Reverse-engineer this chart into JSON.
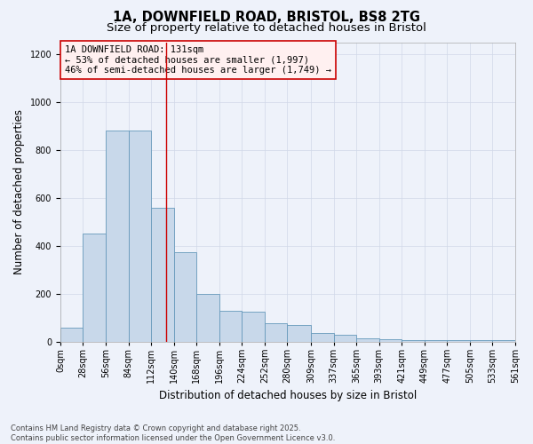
{
  "title_line1": "1A, DOWNFIELD ROAD, BRISTOL, BS8 2TG",
  "title_line2": "Size of property relative to detached houses in Bristol",
  "xlabel": "Distribution of detached houses by size in Bristol",
  "ylabel": "Number of detached properties",
  "annotation_line1": "1A DOWNFIELD ROAD: 131sqm",
  "annotation_line2": "← 53% of detached houses are smaller (1,997)",
  "annotation_line3": "46% of semi-detached houses are larger (1,749) →",
  "bin_edges": [
    0,
    28,
    56,
    84,
    112,
    140,
    168,
    196,
    224,
    252,
    280,
    309,
    337,
    365,
    393,
    421,
    449,
    477,
    505,
    533,
    561
  ],
  "bar_heights": [
    60,
    450,
    880,
    880,
    560,
    375,
    200,
    130,
    125,
    75,
    70,
    35,
    30,
    15,
    10,
    5,
    5,
    5,
    5,
    5
  ],
  "bar_color": "#c8d8ea",
  "bar_edge_color": "#6699bb",
  "vline_color": "#cc0000",
  "vline_x": 131,
  "grid_color": "#d0d8e8",
  "background_color": "#eef2fa",
  "annotation_bg_color": "#fff0f0",
  "annotation_edge_color": "#cc0000",
  "ylim": [
    0,
    1250
  ],
  "yticks": [
    0,
    200,
    400,
    600,
    800,
    1000,
    1200
  ],
  "footnote": "Contains HM Land Registry data © Crown copyright and database right 2025.\nContains public sector information licensed under the Open Government Licence v3.0.",
  "title_fontsize": 10.5,
  "subtitle_fontsize": 9.5,
  "tick_fontsize": 7,
  "label_fontsize": 8.5,
  "annotation_fontsize": 7.5,
  "footnote_fontsize": 6
}
